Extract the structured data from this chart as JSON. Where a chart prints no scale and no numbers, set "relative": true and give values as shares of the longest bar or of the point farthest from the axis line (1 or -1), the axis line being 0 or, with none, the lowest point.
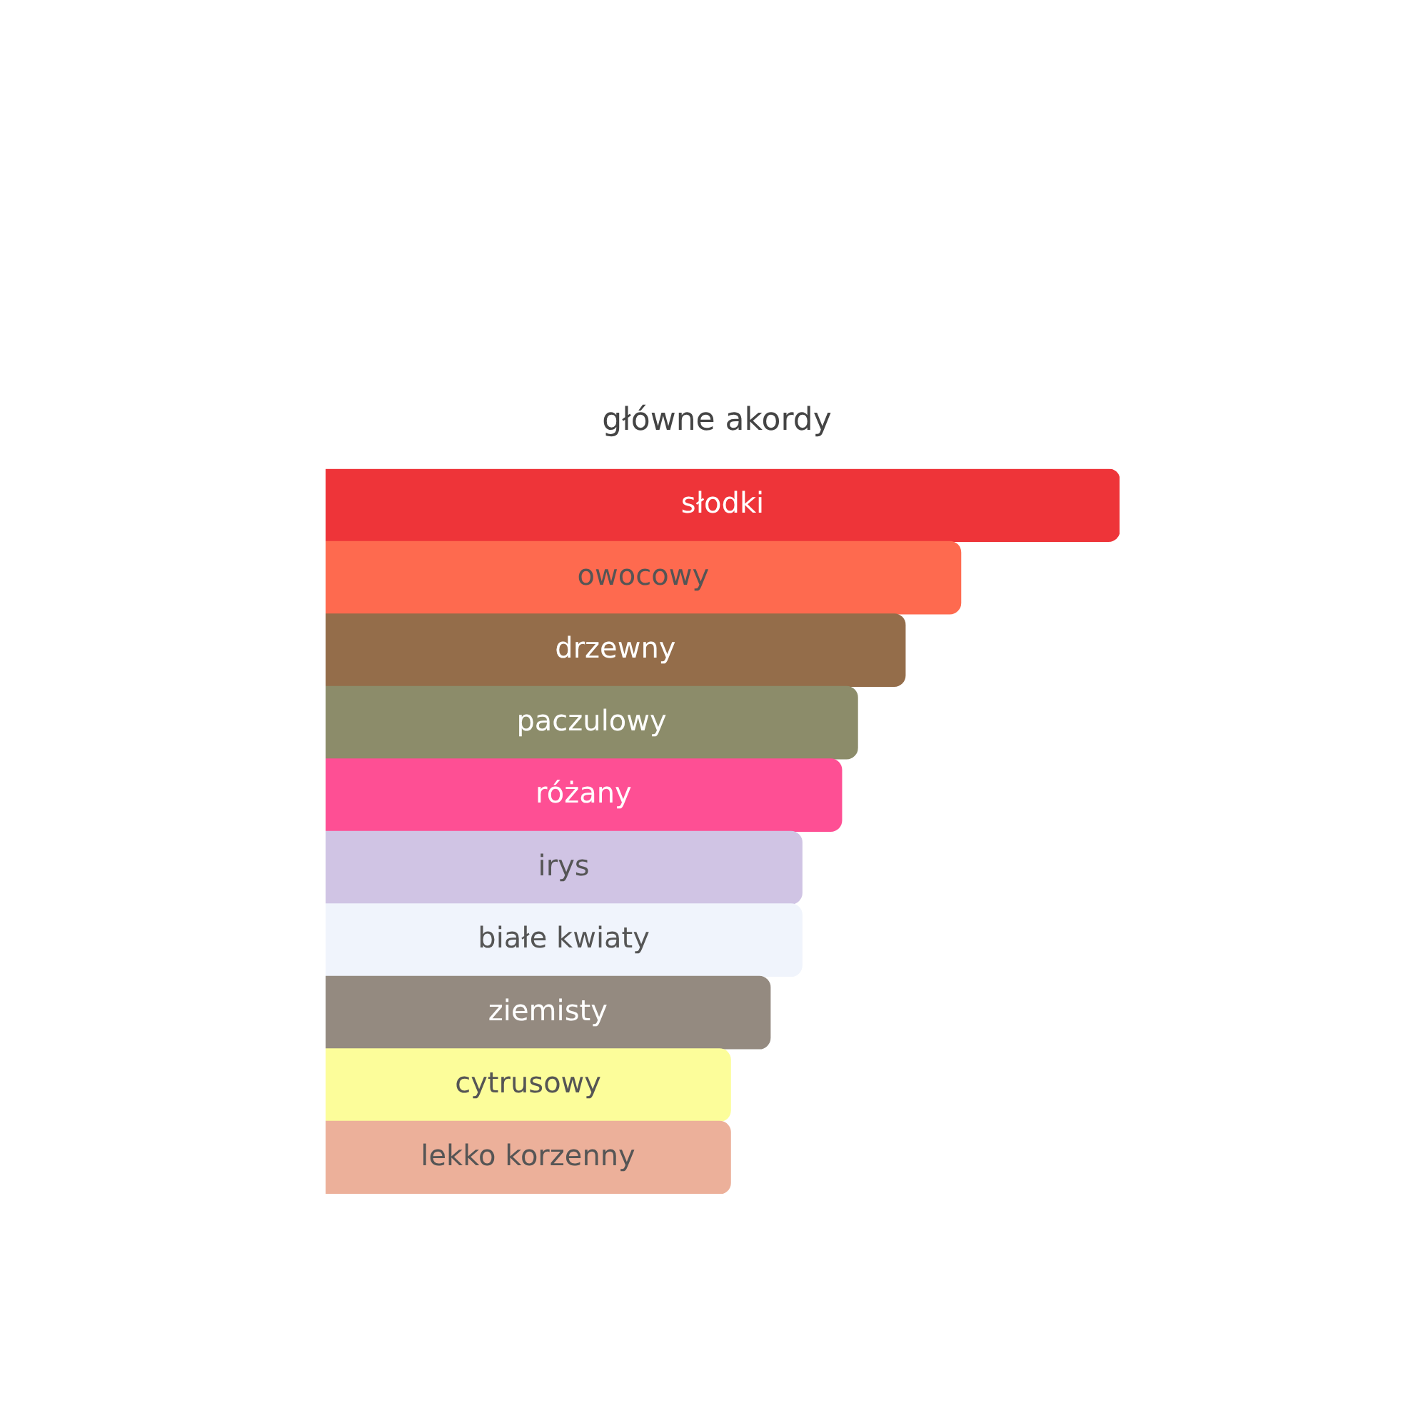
{
  "chart_data": {
    "type": "bar",
    "title": "główne akordy",
    "orientation": "horizontal",
    "relative": true,
    "tick_labels": false,
    "legend": false,
    "categories": [
      "słodki",
      "owocowy",
      "drzewny",
      "paczulowy",
      "różany",
      "irys",
      "białe kwiaty",
      "ziemisty",
      "cytrusowy",
      "lekko korzenny"
    ],
    "values": [
      1,
      0.8,
      0.73,
      0.67,
      0.65,
      0.6,
      0.6,
      0.56,
      0.51,
      0.51
    ],
    "colors": [
      "#ee3439",
      "#fe6a4f",
      "#946d4a",
      "#8c8c6a",
      "#fe4f94",
      "#d0c4e4",
      "#f0f4fc",
      "#948a80",
      "#fcfd9a",
      "#ecb09a"
    ]
  }
}
